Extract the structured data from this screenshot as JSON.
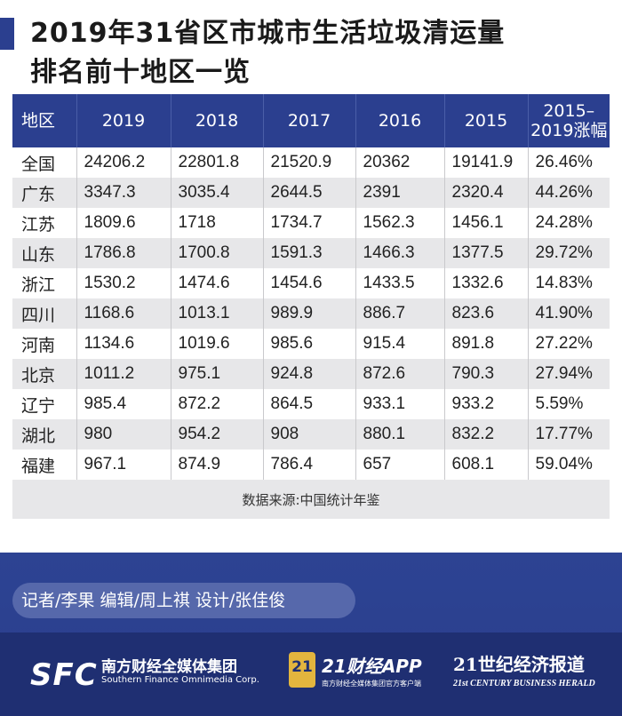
{
  "title": {
    "line1": "2019年31省区市城市生活垃圾清运量",
    "line2": "排名前十地区一览"
  },
  "chart_data": {
    "type": "table",
    "columns": [
      "地区",
      "2019",
      "2018",
      "2017",
      "2016",
      "2015",
      "2015–2019涨幅"
    ],
    "columns_display": [
      [
        "地区"
      ],
      [
        "2019"
      ],
      [
        "2018"
      ],
      [
        "2017"
      ],
      [
        "2016"
      ],
      [
        "2015"
      ],
      [
        "2015–",
        "2019涨幅"
      ]
    ],
    "rows": [
      [
        "全国",
        "24206.2",
        "22801.8",
        "21520.9",
        "20362",
        "19141.9",
        "26.46%"
      ],
      [
        "广东",
        "3347.3",
        "3035.4",
        "2644.5",
        "2391",
        "2320.4",
        "44.26%"
      ],
      [
        "江苏",
        "1809.6",
        "1718",
        "1734.7",
        "1562.3",
        "1456.1",
        "24.28%"
      ],
      [
        "山东",
        "1786.8",
        "1700.8",
        "1591.3",
        "1466.3",
        "1377.5",
        "29.72%"
      ],
      [
        "浙江",
        "1530.2",
        "1474.6",
        "1454.6",
        "1433.5",
        "1332.6",
        "14.83%"
      ],
      [
        "四川",
        "1168.6",
        "1013.1",
        "989.9",
        "886.7",
        "823.6",
        "41.90%"
      ],
      [
        "河南",
        "1134.6",
        "1019.6",
        "985.6",
        "915.4",
        "891.8",
        "27.22%"
      ],
      [
        "北京",
        "1011.2",
        "975.1",
        "924.8",
        "872.6",
        "790.3",
        "27.94%"
      ],
      [
        "辽宁",
        "985.4",
        "872.2",
        "864.5",
        "933.1",
        "933.2",
        "5.59%"
      ],
      [
        "湖北",
        "980",
        "954.2",
        "908",
        "880.1",
        "832.2",
        "17.77%"
      ],
      [
        "福建",
        "967.1",
        "874.9",
        "786.4",
        "657",
        "608.1",
        "59.04%"
      ]
    ],
    "source": "数据来源:中国统计年鉴"
  },
  "credits": "记者/李果  编辑/周上祺  设计/张佳俊",
  "logos": {
    "sfc_mark": "SFC",
    "sfc_cn": "南方财经全媒体集团",
    "sfc_en": "Southern Finance Omnimedia Corp.",
    "badge": "21",
    "app_name": "21财经APP",
    "app_sub": "南方财经全媒体集团官方客户端",
    "herald_cn": "21世纪经济报道",
    "herald_en": "21st CENTURY BUSINESS HERALD"
  },
  "colors": {
    "header_bg": "#2b3f8f",
    "footer_bg": "#2d4393",
    "stripe": "#e7e7e9",
    "badge": "#e3b53e"
  }
}
